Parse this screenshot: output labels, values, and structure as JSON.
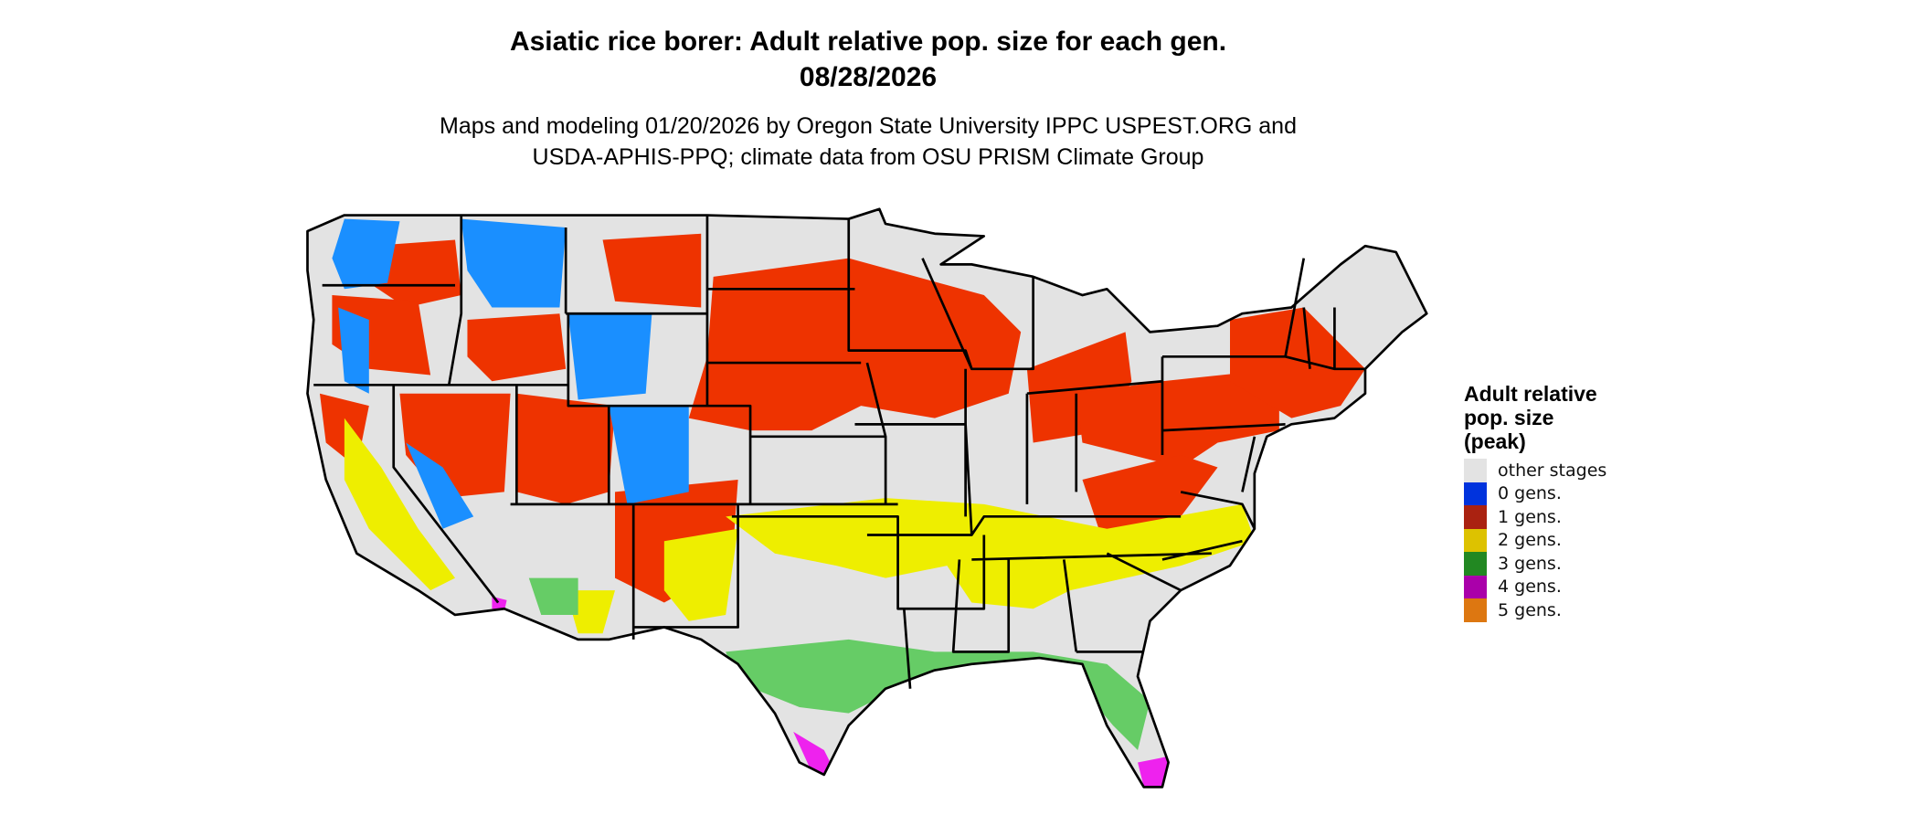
{
  "header": {
    "title_line1": "Asiatic rice borer: Adult relative pop. size for each gen.",
    "title_line2": "08/28/2026",
    "subtitle_line1": "Maps and modeling 01/20/2026 by Oregon State University IPPC USPEST.ORG and",
    "subtitle_line2": "USDA-APHIS-PPQ; climate data from OSU PRISM Climate Group"
  },
  "legend": {
    "title_line1": "Adult relative",
    "title_line2": "pop. size",
    "title_line3": "(peak)",
    "items": [
      {
        "label": "other stages",
        "color": "#e3e3e3"
      },
      {
        "label": "0 gens.",
        "color": "#0033dd"
      },
      {
        "label": "1 gens.",
        "color": "#aa2211"
      },
      {
        "label": "2 gens.",
        "color": "#ddc200"
      },
      {
        "label": "3 gens.",
        "color": "#228822"
      },
      {
        "label": "4 gens.",
        "color": "#aa00aa"
      },
      {
        "label": "5 gens.",
        "color": "#dd7711"
      }
    ]
  },
  "map_colors": {
    "background_land": "#e3e3e3",
    "zero_gens_rendered": "#1a8fff",
    "one_gen_rendered": "#ee3300",
    "two_gens_rendered": "#eeee00",
    "three_gens_rendered": "#66cc66",
    "four_gens_rendered": "#ee22ee",
    "borders": "#000000"
  }
}
